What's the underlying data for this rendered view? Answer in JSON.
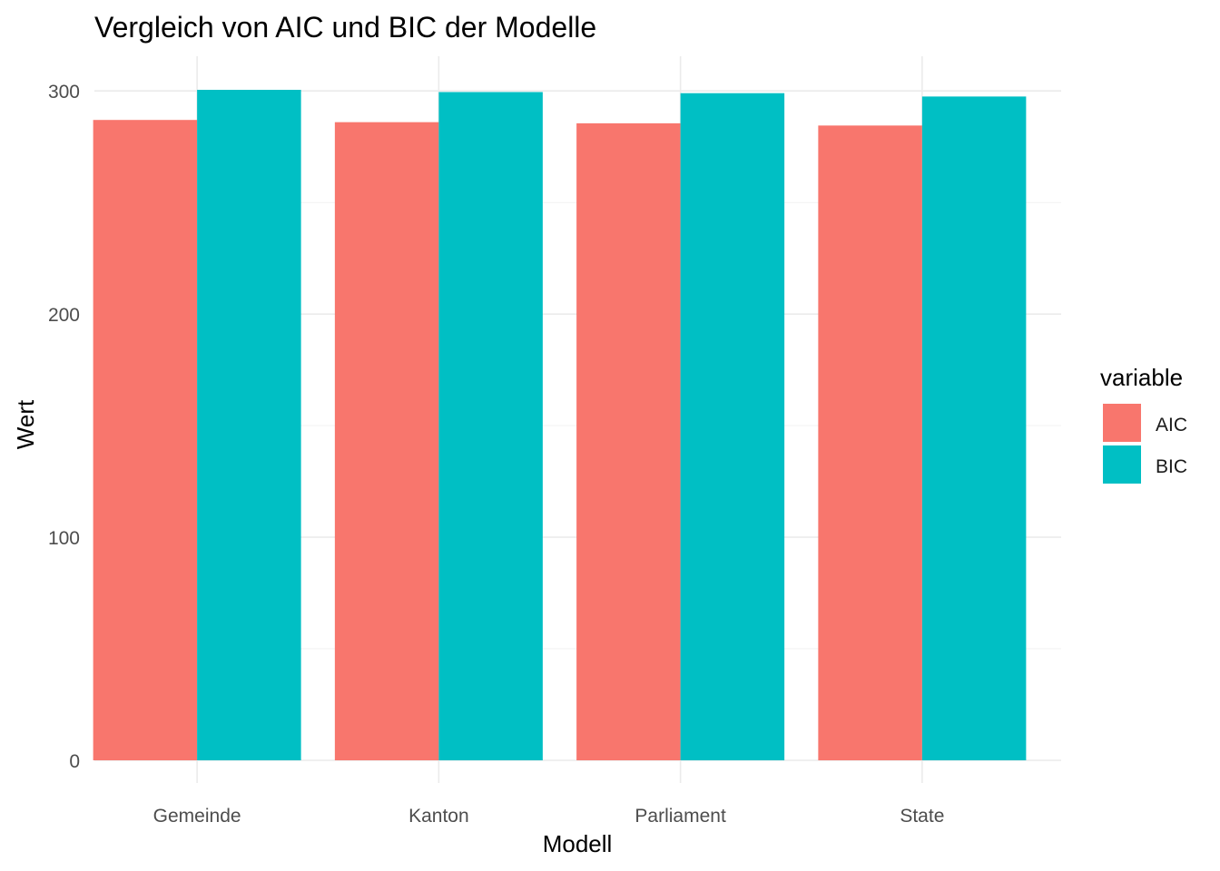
{
  "chart_data": {
    "type": "bar",
    "title": "Vergleich von AIC und BIC der Modelle",
    "xlabel": "Modell",
    "ylabel": "Wert",
    "categories": [
      "Gemeinde",
      "Kanton",
      "Parliament",
      "State"
    ],
    "series": [
      {
        "name": "AIC",
        "color": "#F8766D",
        "values": [
          287,
          286,
          285.5,
          284.5
        ]
      },
      {
        "name": "BIC",
        "color": "#00BFC4",
        "values": [
          300.5,
          299.5,
          299,
          297.5
        ]
      }
    ],
    "ylim": [
      0,
      300.5
    ],
    "yticks": [
      0,
      100,
      200,
      300
    ],
    "grid": true,
    "legend": {
      "title": "variable",
      "position": "right"
    }
  }
}
